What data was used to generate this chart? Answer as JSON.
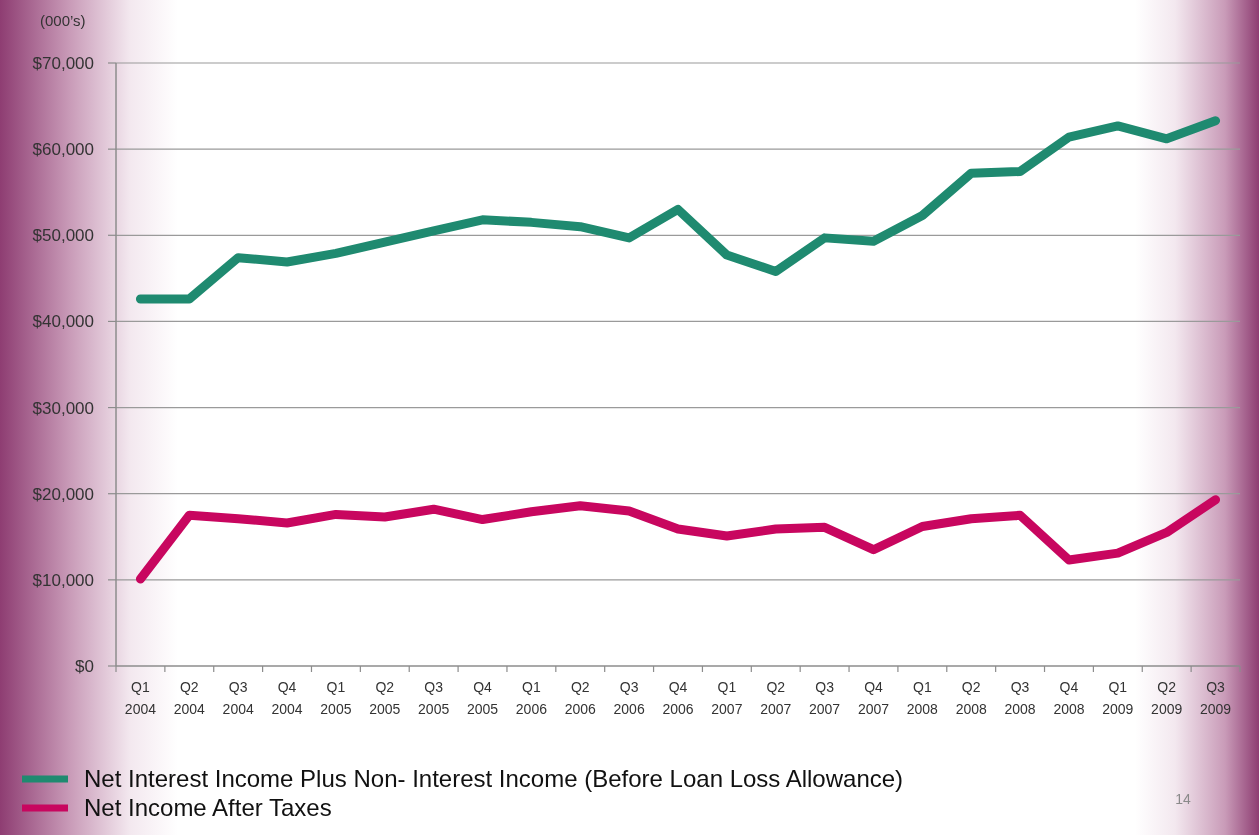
{
  "chart_data": {
    "type": "line",
    "ylabel": "(000’s)",
    "categories": [
      "Q1 2004",
      "Q2 2004",
      "Q3 2004",
      "Q4 2004",
      "Q1 2005",
      "Q2 2005",
      "Q3 2005",
      "Q4 2005",
      "Q1 2006",
      "Q2 2006",
      "Q3 2006",
      "Q4 2006",
      "Q1 2007",
      "Q2 2007",
      "Q3 2007",
      "Q4 2007",
      "Q1 2008",
      "Q2 2008",
      "Q3 2008",
      "Q4 2008",
      "Q1 2009",
      "Q2 2009",
      "Q3 2009"
    ],
    "series": [
      {
        "name": "Net Interest Income Plus Non- Interest Income (Before Loan Loss Allowance)",
        "color": "#1f8a70",
        "values": [
          42600,
          42600,
          47400,
          46900,
          47900,
          49200,
          50500,
          51800,
          51500,
          51000,
          49700,
          53000,
          47700,
          45800,
          49700,
          49300,
          52300,
          57200,
          57400,
          61400,
          62700,
          61200,
          63300
        ]
      },
      {
        "name": "Net Income After Taxes",
        "color": "#c8065f",
        "values": [
          10100,
          17500,
          17100,
          16600,
          17600,
          17300,
          18200,
          17000,
          17900,
          18600,
          18000,
          15900,
          15100,
          15900,
          16100,
          13500,
          16200,
          17100,
          17500,
          12300,
          13100,
          15500,
          19300
        ]
      }
    ],
    "ylim": [
      0,
      70000
    ],
    "yticks": [
      {
        "value": 0,
        "label": "$0"
      },
      {
        "value": 10000,
        "label": "$10,000"
      },
      {
        "value": 20000,
        "label": "$20,000"
      },
      {
        "value": 30000,
        "label": "$30,000"
      },
      {
        "value": 40000,
        "label": "$40,000"
      },
      {
        "value": 50000,
        "label": "$50,000"
      },
      {
        "value": 60000,
        "label": "$60,000"
      },
      {
        "value": 70000,
        "label": "$70,000"
      }
    ],
    "grid": "y",
    "legend": "bottom",
    "line_style": "solid",
    "annotations": [
      "14"
    ]
  }
}
